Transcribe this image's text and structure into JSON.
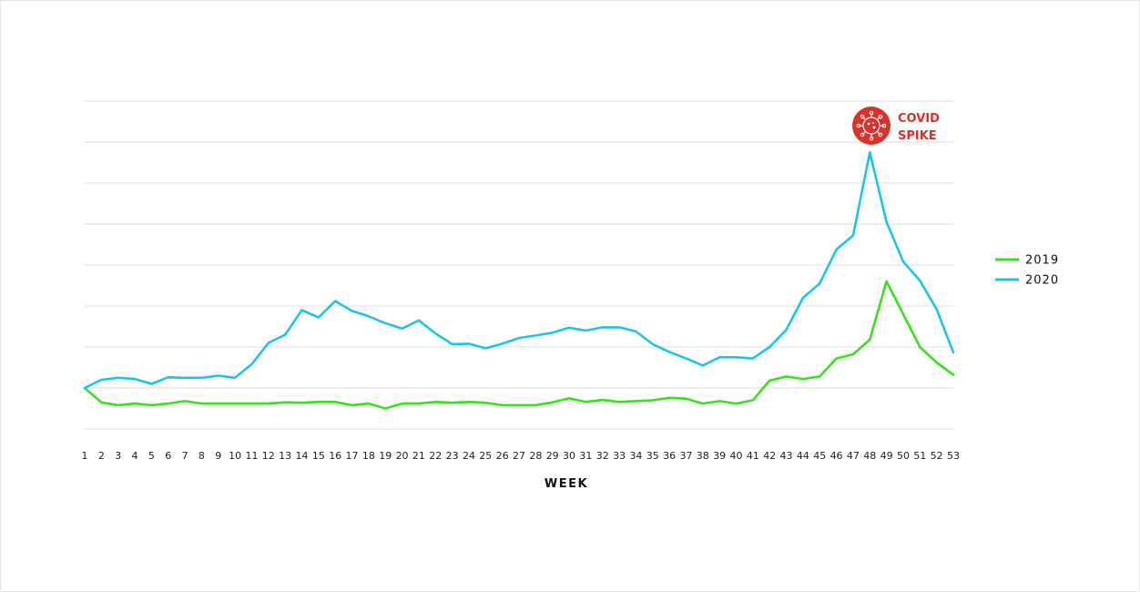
{
  "chart_data": {
    "type": "line",
    "xlabel": "WEEK",
    "ylabel": "",
    "title": "",
    "x": [
      1,
      2,
      3,
      4,
      5,
      6,
      7,
      8,
      9,
      10,
      11,
      12,
      13,
      14,
      15,
      16,
      17,
      18,
      19,
      20,
      21,
      22,
      23,
      24,
      25,
      26,
      27,
      28,
      29,
      30,
      31,
      32,
      33,
      34,
      35,
      36,
      37,
      38,
      39,
      40,
      41,
      42,
      43,
      44,
      45,
      46,
      47,
      48,
      49,
      50,
      51,
      52,
      53
    ],
    "x_tick_labels": [
      "1",
      "2",
      "3",
      "4",
      "5",
      "6",
      "7",
      "8",
      "9",
      "10",
      "11",
      "12",
      "13",
      "14",
      "15",
      "16",
      "17",
      "18",
      "19",
      "20",
      "21",
      "22",
      "23",
      "24",
      "25",
      "26",
      "27",
      "28",
      "29",
      "30",
      "31",
      "32",
      "33",
      "34",
      "35",
      "36",
      "37",
      "38",
      "39",
      "40",
      "41",
      "42",
      "43",
      "44",
      "45",
      "46",
      "47",
      "48",
      "49",
      "50",
      "51",
      "52",
      "53"
    ],
    "ylim": [
      -1,
      7
    ],
    "grid_lines": 9,
    "y_tick_labels": "none",
    "series": [
      {
        "name": "2019",
        "color": "#39e01e",
        "values": [
          0,
          -0.35,
          -0.42,
          -0.38,
          -0.42,
          -0.38,
          -0.32,
          -0.38,
          -0.38,
          -0.38,
          -0.38,
          -0.38,
          -0.35,
          -0.36,
          -0.34,
          -0.34,
          -0.42,
          -0.38,
          -0.5,
          -0.38,
          -0.38,
          -0.34,
          -0.36,
          -0.34,
          -0.36,
          -0.42,
          -0.42,
          -0.42,
          -0.35,
          -0.25,
          -0.34,
          -0.29,
          -0.34,
          -0.32,
          -0.3,
          -0.24,
          -0.26,
          -0.38,
          -0.32,
          -0.38,
          -0.3,
          0.18,
          0.28,
          0.22,
          0.28,
          0.72,
          0.82,
          1.18,
          2.6,
          1.8,
          1.0,
          0.62,
          0.32
        ]
      },
      {
        "name": "2020",
        "color": "#1ec3ec",
        "values": [
          0,
          0.2,
          0.25,
          0.22,
          0.1,
          0.26,
          0.25,
          0.25,
          0.3,
          0.25,
          0.58,
          1.1,
          1.3,
          1.9,
          1.72,
          2.12,
          1.88,
          1.75,
          1.58,
          1.45,
          1.65,
          1.33,
          1.07,
          1.08,
          0.97,
          1.08,
          1.22,
          1.28,
          1.35,
          1.47,
          1.4,
          1.48,
          1.48,
          1.38,
          1.07,
          0.88,
          0.72,
          0.55,
          0.75,
          0.75,
          0.72,
          1.0,
          1.42,
          2.2,
          2.55,
          3.38,
          3.72,
          5.75,
          4.05,
          3.08,
          2.62,
          1.92,
          0.87
        ]
      }
    ],
    "legend": {
      "position": "right",
      "entries": [
        "2019",
        "2020"
      ]
    },
    "annotations": [
      {
        "text_lines": [
          "COVID",
          "SPIKE"
        ],
        "at_x": 48,
        "icon": "virus-icon",
        "color": "#d9312b"
      }
    ]
  }
}
